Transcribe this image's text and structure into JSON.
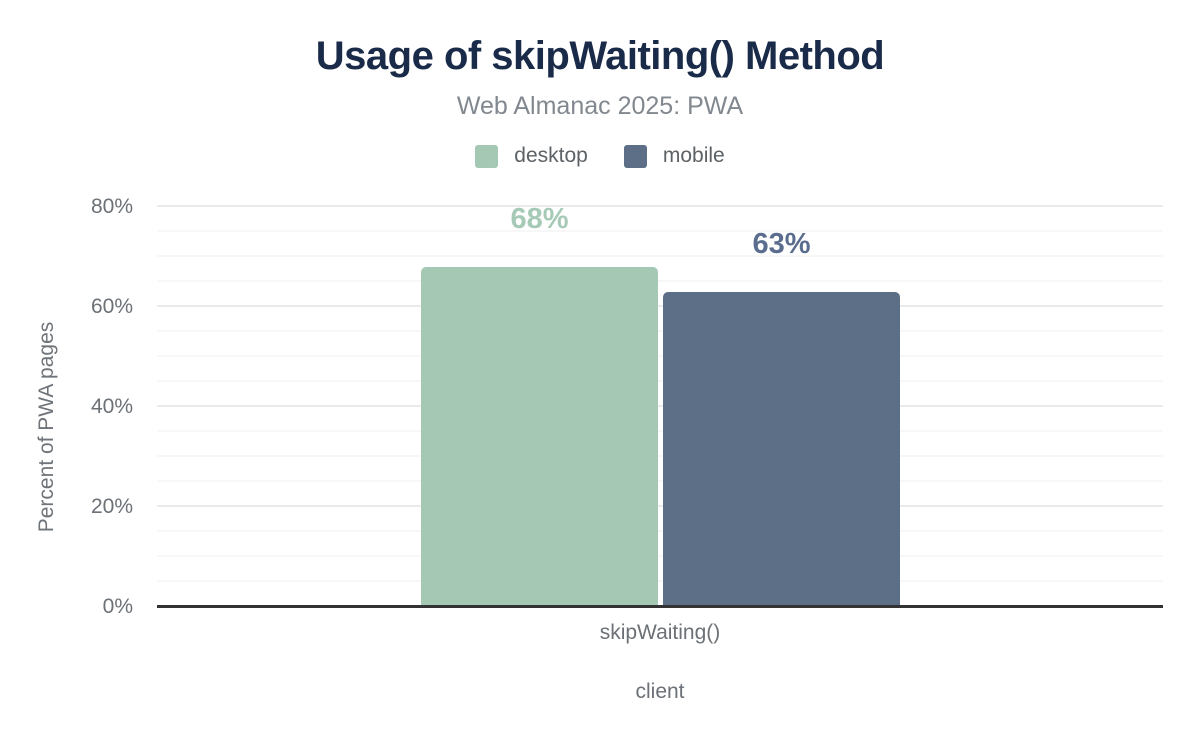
{
  "chart_data": {
    "type": "bar",
    "title": "Usage of skipWaiting() Method",
    "subtitle": "Web Almanac 2025: PWA",
    "categories": [
      "skipWaiting()"
    ],
    "series": [
      {
        "name": "desktop",
        "values": [
          68
        ],
        "labels": [
          "68%"
        ],
        "color": "#a5c8b4",
        "label_color": "#a7cab7"
      },
      {
        "name": "mobile",
        "values": [
          63
        ],
        "labels": [
          "63%"
        ],
        "color": "#5d6f87",
        "label_color": "#5b6d8e"
      }
    ],
    "xlabel": "client",
    "ylabel": "Percent of PWA pages",
    "ylim": [
      0,
      80
    ],
    "yticks": [
      {
        "value": 0,
        "label": "0%"
      },
      {
        "value": 20,
        "label": "20%"
      },
      {
        "value": 40,
        "label": "40%"
      },
      {
        "value": 60,
        "label": "60%"
      },
      {
        "value": 80,
        "label": "80%"
      }
    ],
    "minor_step": 5,
    "major_step": 20,
    "grid": "horizontal; minor line every 5%, major line every 20%",
    "legend_position": "top"
  },
  "colors": {
    "title_text": "#1a2b49",
    "subtitle_text": "#82888f",
    "legend_text": "#5d6266",
    "axis_text": "#6b7177",
    "axis_line": "#333333",
    "grid_major": "#ebebeb",
    "grid_minor": "#f7f7f7",
    "background": "#ffffff"
  }
}
